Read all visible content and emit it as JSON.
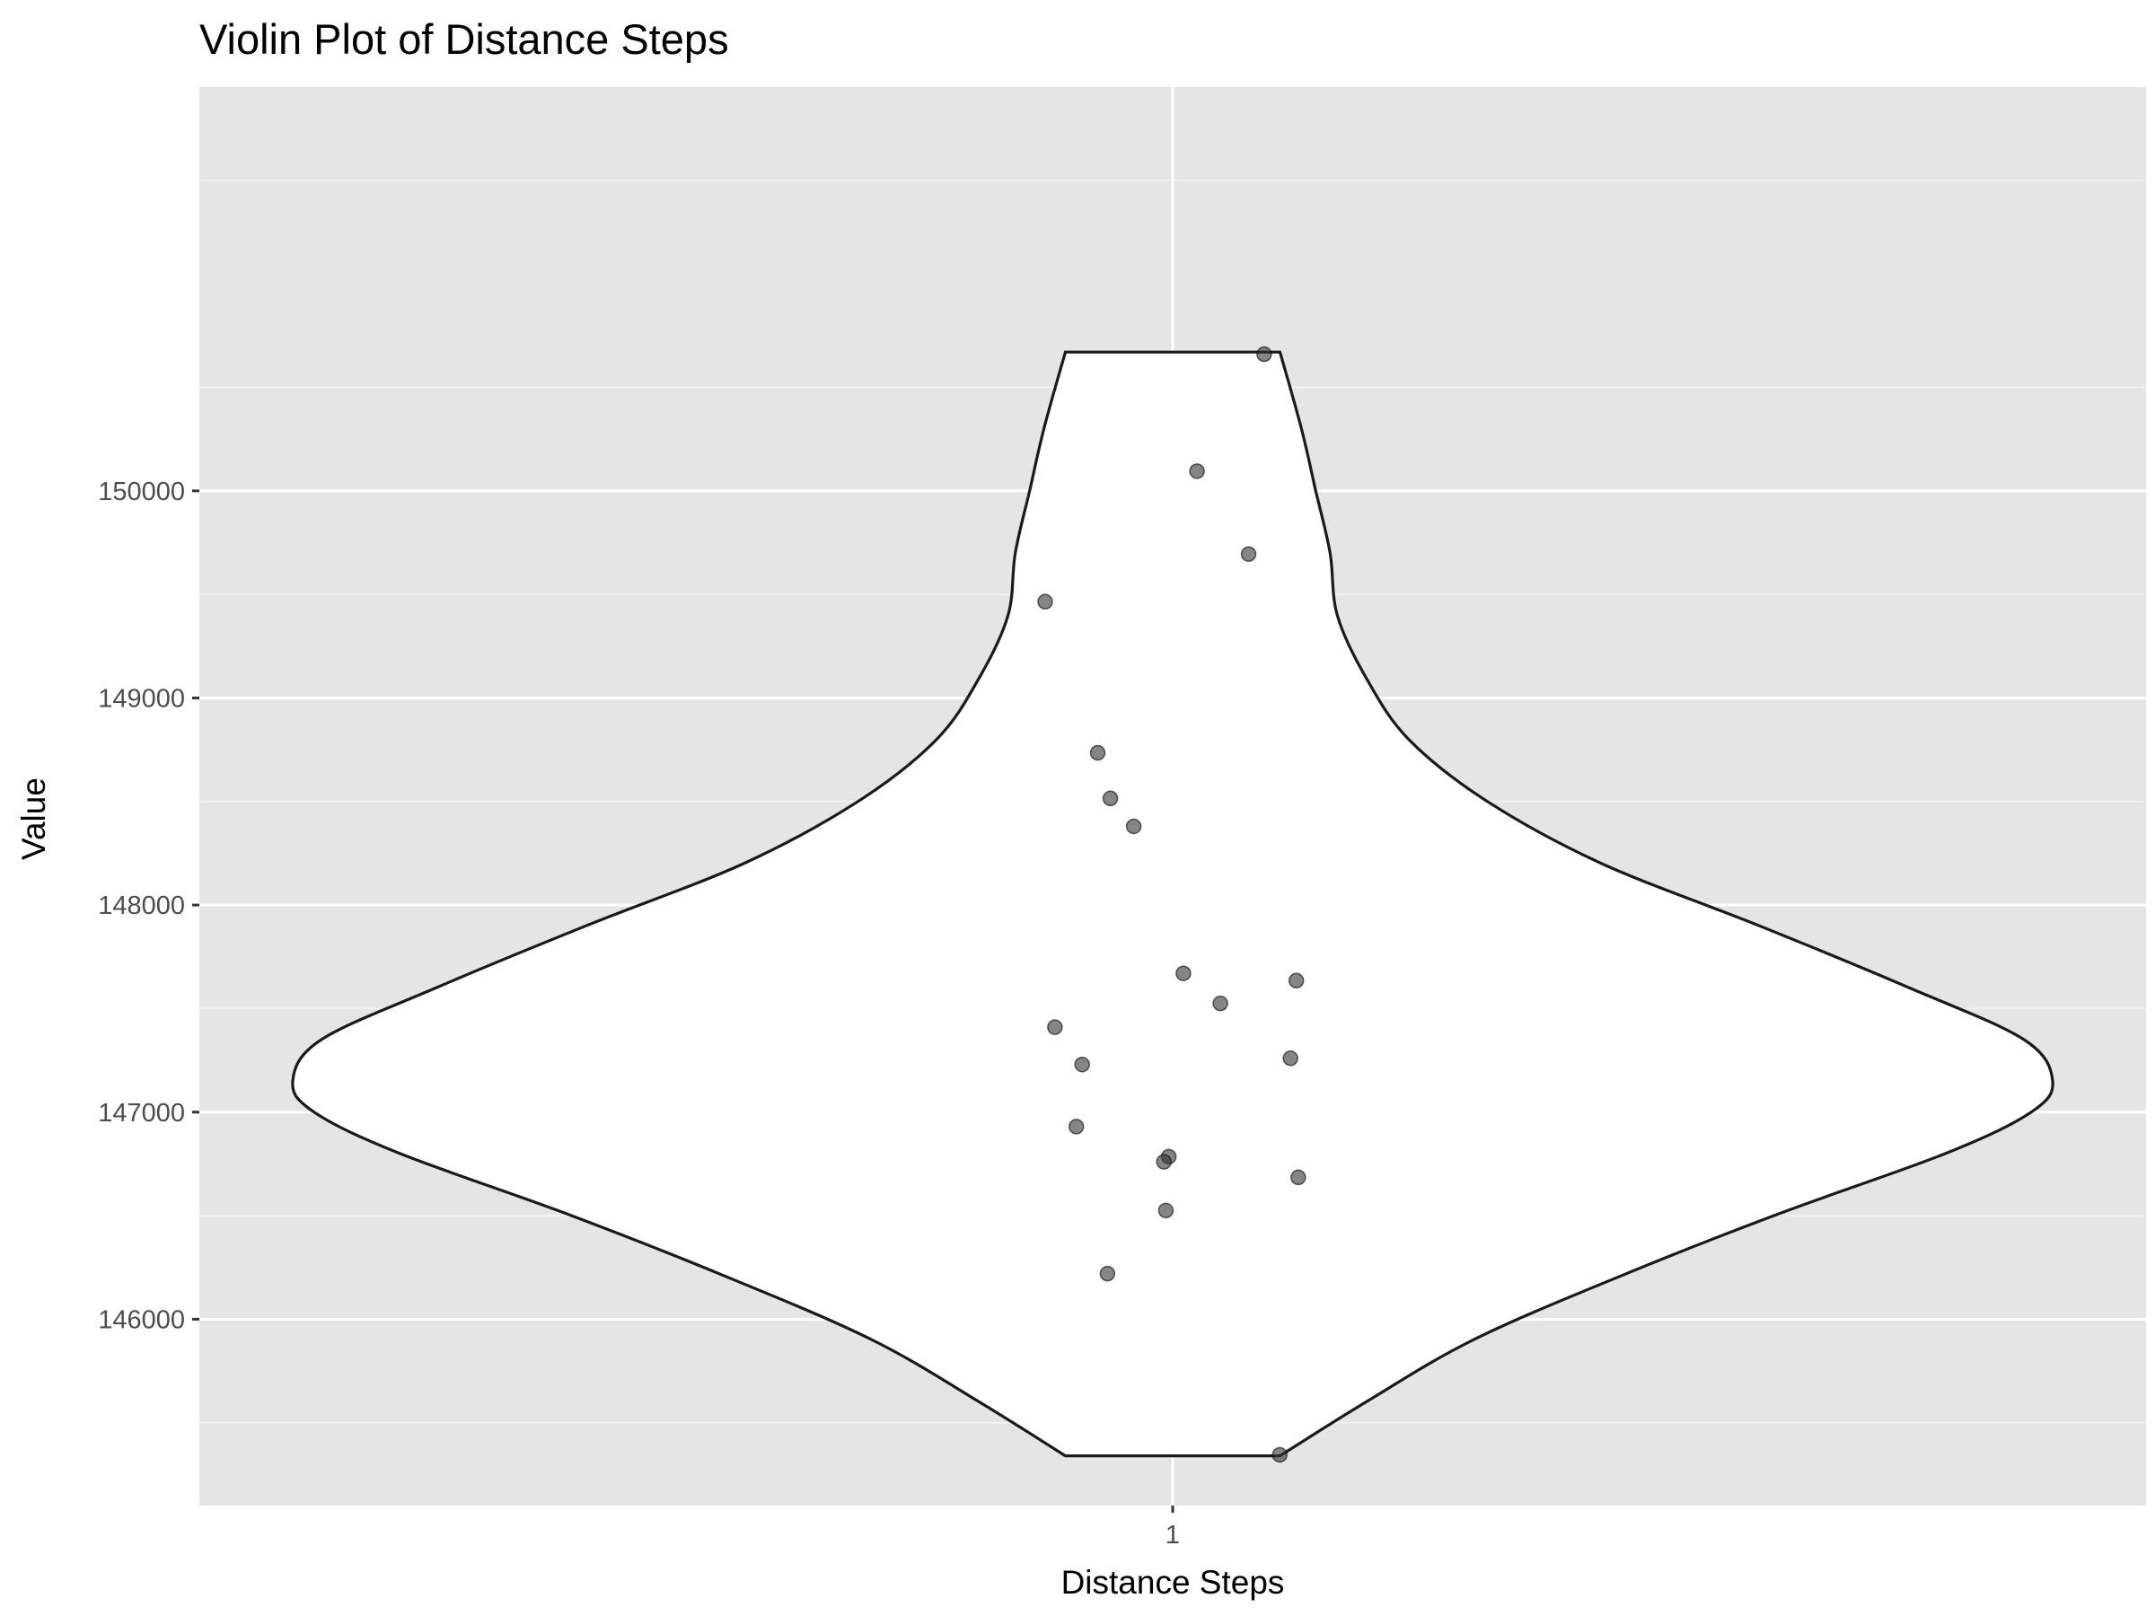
{
  "chart_data": {
    "type": "violin",
    "title": "Violin Plot of Distance Steps",
    "xlabel": "Distance Steps",
    "ylabel": "Value",
    "categories": [
      "1"
    ],
    "ylim": [
      145100,
      151950
    ],
    "y_ticks": [
      "146000",
      "147000",
      "148000",
      "149000",
      "150000"
    ],
    "grid": true,
    "panel_background": "#e5e5e5",
    "violin_fill": "#ffffff",
    "violin_stroke": "#1a1a1a",
    "point_color": "#333333",
    "violin_range": [
      145340,
      150670
    ],
    "violin_profile": [
      {
        "y": 145340,
        "w": 0.15
      },
      {
        "y": 145600,
        "w": 0.27
      },
      {
        "y": 145900,
        "w": 0.42
      },
      {
        "y": 146200,
        "w": 0.62
      },
      {
        "y": 146500,
        "w": 0.84
      },
      {
        "y": 146800,
        "w": 1.08
      },
      {
        "y": 147000,
        "w": 1.2
      },
      {
        "y": 147150,
        "w": 1.23
      },
      {
        "y": 147350,
        "w": 1.19
      },
      {
        "y": 147600,
        "w": 1.03
      },
      {
        "y": 147900,
        "w": 0.82
      },
      {
        "y": 148200,
        "w": 0.6
      },
      {
        "y": 148500,
        "w": 0.44
      },
      {
        "y": 148800,
        "w": 0.33
      },
      {
        "y": 149100,
        "w": 0.27
      },
      {
        "y": 149400,
        "w": 0.23
      },
      {
        "y": 149700,
        "w": 0.22
      },
      {
        "y": 150000,
        "w": 0.2
      },
      {
        "y": 150300,
        "w": 0.18
      },
      {
        "y": 150670,
        "w": 0.15
      }
    ],
    "points": [
      {
        "x": 1.094,
        "y": 150660
      },
      {
        "x": 1.025,
        "y": 150095
      },
      {
        "x": 1.078,
        "y": 149695
      },
      {
        "x": 0.869,
        "y": 149465
      },
      {
        "x": 0.923,
        "y": 148735
      },
      {
        "x": 0.936,
        "y": 148515
      },
      {
        "x": 0.96,
        "y": 148380
      },
      {
        "x": 1.011,
        "y": 147670
      },
      {
        "x": 1.127,
        "y": 147635
      },
      {
        "x": 1.049,
        "y": 147525
      },
      {
        "x": 0.879,
        "y": 147410
      },
      {
        "x": 1.121,
        "y": 147260
      },
      {
        "x": 0.907,
        "y": 147230
      },
      {
        "x": 0.901,
        "y": 146930
      },
      {
        "x": 0.996,
        "y": 146785
      },
      {
        "x": 0.991,
        "y": 146760
      },
      {
        "x": 1.129,
        "y": 146685
      },
      {
        "x": 0.993,
        "y": 146525
      },
      {
        "x": 0.933,
        "y": 146220
      },
      {
        "x": 1.11,
        "y": 145345
      }
    ]
  }
}
